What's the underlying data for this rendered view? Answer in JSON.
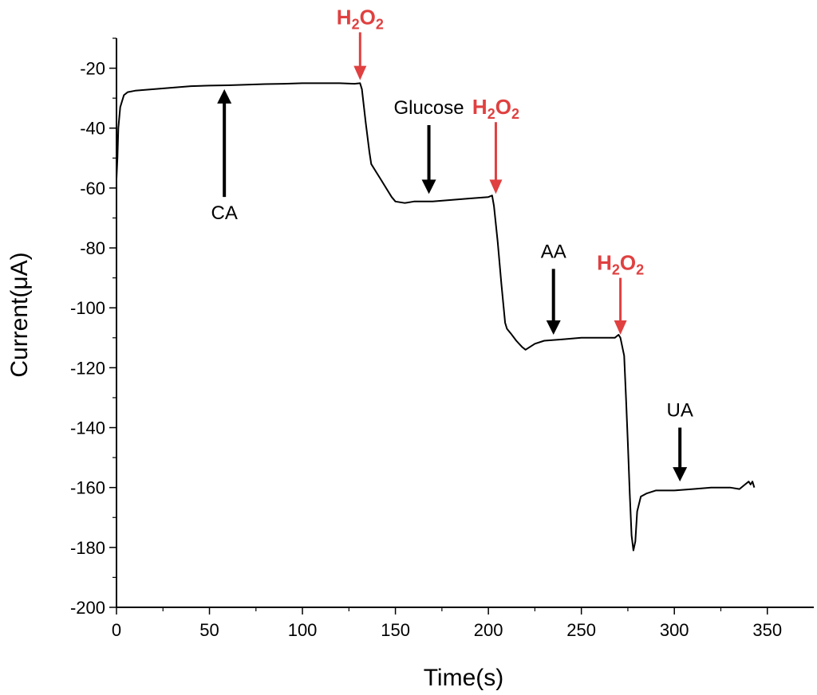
{
  "chart_data": {
    "type": "line",
    "xlabel": "Time(s)",
    "ylabel": "Current(μA)",
    "xlim": [
      0,
      375
    ],
    "ylim": [
      -200,
      -10
    ],
    "xticks": [
      0,
      50,
      100,
      150,
      200,
      250,
      300,
      350
    ],
    "yticks": [
      -20,
      -40,
      -60,
      -80,
      -100,
      -120,
      -140,
      -160,
      -180,
      -200
    ],
    "grid": false,
    "series": [
      {
        "x": [
          0,
          0.5,
          1,
          2,
          4,
          6,
          10,
          20,
          30,
          40,
          50,
          60,
          70,
          80,
          90,
          100,
          110,
          120,
          128,
          131,
          132,
          134,
          136,
          137,
          140,
          142,
          145,
          148,
          150,
          155,
          160,
          170,
          180,
          190,
          200,
          202,
          203,
          205,
          207,
          209,
          210,
          212,
          215,
          218,
          220,
          225,
          230,
          240,
          250,
          260,
          265,
          268,
          270,
          271,
          273,
          274,
          275,
          276,
          277,
          278,
          279,
          280,
          282,
          285,
          290,
          300,
          310,
          320,
          330,
          335,
          338,
          340,
          341,
          342,
          343
        ],
        "values": [
          -57,
          -50,
          -40,
          -33,
          -29,
          -28,
          -27.5,
          -27,
          -26.5,
          -26,
          -25.8,
          -25.7,
          -25.5,
          -25.3,
          -25.2,
          -25.0,
          -25.0,
          -25.0,
          -25.2,
          -25.0,
          -27,
          -38,
          -48,
          -52,
          -55,
          -57,
          -60,
          -63,
          -64.5,
          -65,
          -64.5,
          -64.5,
          -64,
          -63.5,
          -63,
          -62.5,
          -66,
          -78,
          -92,
          -105,
          -107,
          -108.5,
          -111,
          -113,
          -114,
          -112,
          -111,
          -110.5,
          -110,
          -110,
          -110,
          -110,
          -109,
          -110,
          -116,
          -130,
          -145,
          -162,
          -176,
          -181,
          -178,
          -168,
          -163,
          -162,
          -161,
          -161,
          -160.5,
          -160,
          -160,
          -160.5,
          -159,
          -158,
          -159,
          -158,
          -160
        ]
      }
    ],
    "annotations": [
      {
        "label": "CA",
        "color": "#000000",
        "arrow_dir": "up",
        "arrow_x": 58,
        "arrow_y_from": -63,
        "arrow_y_to": -27
      },
      {
        "label": "Glucose",
        "color": "#000000",
        "arrow_dir": "down",
        "arrow_x": 168,
        "arrow_y_from": -39,
        "arrow_y_to": -62
      },
      {
        "label": "AA",
        "color": "#000000",
        "arrow_dir": "down",
        "arrow_x": 235,
        "arrow_y_from": -87,
        "arrow_y_to": -109
      },
      {
        "label": "UA",
        "color": "#000000",
        "arrow_dir": "down",
        "arrow_x": 303,
        "arrow_y_from": -140,
        "arrow_y_to": -158
      },
      {
        "label": "H2O2",
        "color": "#e04040",
        "arrow_dir": "down",
        "arrow_x": 131,
        "arrow_y_from": -8,
        "arrow_y_to": -24
      },
      {
        "label": "H2O2",
        "color": "#e04040",
        "arrow_dir": "down",
        "arrow_x": 204,
        "arrow_y_from": -38,
        "arrow_y_to": -62
      },
      {
        "label": "H2O2",
        "color": "#e04040",
        "arrow_dir": "down",
        "arrow_x": 271,
        "arrow_y_from": -90,
        "arrow_y_to": -109
      }
    ],
    "colors": {
      "line": "#000000",
      "axis": "#000000",
      "h2o2": "#e04040",
      "black_arrow": "#000000"
    }
  }
}
